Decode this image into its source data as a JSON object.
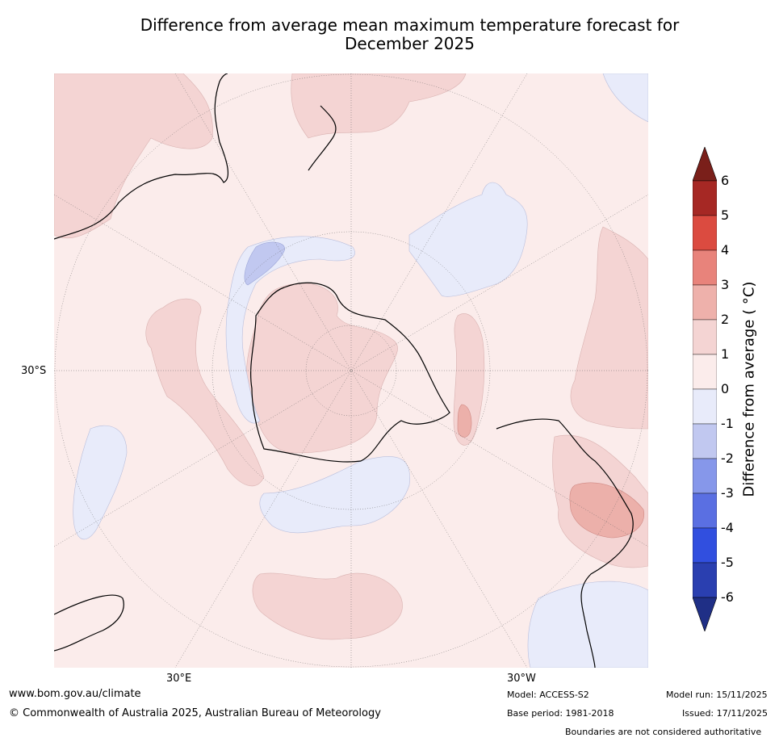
{
  "title": {
    "line1": "Difference from average mean maximum temperature forecast for",
    "line2": "December 2025"
  },
  "map": {
    "projection": "south-polar-stereographic",
    "latitude_labels": [
      "30°S"
    ],
    "longitude_labels": [
      "30°E",
      "30°W"
    ],
    "colors": {
      "ocean_bg": "#fbeceb",
      "warm_0_1": "#fbeceb",
      "warm_1_2": "#f4d4d3",
      "warm_2_3": "#ecb0aa",
      "warm_3_4": "#e6847e",
      "cool_0_m1": "#e8ebfa",
      "cool_m1_m2": "#c1c8f0"
    }
  },
  "colorbar": {
    "title": "Difference from average ( °C)",
    "ticks": [
      "6",
      "5",
      "4",
      "3",
      "2",
      "1",
      "0",
      "-1",
      "-2",
      "-3",
      "-4",
      "-5",
      "-6"
    ],
    "bins": [
      {
        "range": "5 to 6",
        "color": "#a62824"
      },
      {
        "range": "4 to 5",
        "color": "#db4b40"
      },
      {
        "range": "3 to 4",
        "color": "#e8837b"
      },
      {
        "range": "2 to 3",
        "color": "#eeb1ab"
      },
      {
        "range": "1 to 2",
        "color": "#f4d4d3"
      },
      {
        "range": "0 to 1",
        "color": "#fbeceb"
      },
      {
        "range": "-1 to 0",
        "color": "#e8ebfa"
      },
      {
        "range": "-2 to -1",
        "color": "#c1c8f0"
      },
      {
        "range": "-3 to -2",
        "color": "#8697ea"
      },
      {
        "range": "-4 to -3",
        "color": "#5a6fe2"
      },
      {
        "range": "-5 to -4",
        "color": "#314fdf"
      },
      {
        "range": "-6 to -5",
        "color": "#2a3fb0"
      }
    ],
    "over_color": "#7a1f1a",
    "under_color": "#1f2f86"
  },
  "footer": {
    "website": "www.bom.gov.au/climate",
    "copyright": "© Commonwealth of Australia 2025, Australian Bureau of Meteorology",
    "model": "Model: ACCESS-S2",
    "base_period": "Base period: 1981-2018",
    "model_run": "Model run: 15/11/2025",
    "issued": "Issued: 17/11/2025",
    "disclaimer": "Boundaries are not considered authoritative"
  }
}
